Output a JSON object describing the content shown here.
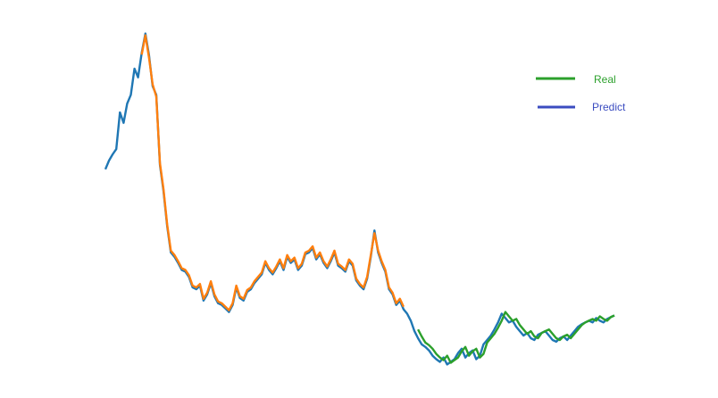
{
  "chart_data": {
    "type": "line",
    "title": "",
    "xlabel": "",
    "ylabel": "",
    "axes_visible": false,
    "grid": false,
    "legend_position": "top-right",
    "xlim": [
      0,
      560
    ],
    "ylim": [
      0,
      420
    ],
    "series": [
      {
        "name": "",
        "color": "#1f77b4",
        "role": "full-history",
        "x": [
          0,
          4,
          8,
          12,
          16,
          20,
          24,
          28,
          32,
          36,
          40,
          44,
          48,
          52,
          56,
          60,
          64,
          68,
          72,
          76,
          80,
          84,
          88,
          92,
          96,
          100,
          104,
          108,
          112,
          116,
          120,
          124,
          128,
          132,
          136,
          140,
          144,
          148,
          152,
          156,
          160,
          164,
          168,
          172,
          176,
          180,
          184,
          188,
          192,
          196,
          200,
          204,
          208,
          212,
          216,
          220,
          224,
          228,
          232,
          236,
          240,
          244,
          248,
          252,
          256,
          260,
          264,
          268,
          272,
          276,
          280,
          284,
          288,
          292,
          296,
          300,
          304,
          308,
          312,
          316,
          320,
          324,
          328,
          332,
          336,
          340,
          344,
          348,
          352,
          356,
          360,
          364,
          368,
          372,
          376,
          380,
          384,
          388,
          392,
          396,
          400,
          404,
          408,
          412,
          416,
          420,
          424,
          428,
          432,
          436,
          440,
          444,
          448,
          452,
          456,
          460,
          464,
          468,
          472,
          476,
          480,
          484,
          488,
          492,
          496,
          500,
          504,
          508,
          512,
          516,
          520,
          524,
          528,
          532,
          536,
          540,
          544,
          548,
          552,
          556,
          560
        ],
        "values": [
          245,
          255,
          262,
          268,
          310,
          298,
          320,
          330,
          360,
          350,
          378,
          400,
          375,
          340,
          330,
          250,
          220,
          180,
          150,
          145,
          138,
          130,
          128,
          122,
          110,
          108,
          112,
          95,
          102,
          115,
          100,
          92,
          90,
          86,
          82,
          90,
          110,
          98,
          95,
          105,
          108,
          115,
          120,
          125,
          138,
          130,
          125,
          132,
          140,
          130,
          145,
          138,
          142,
          130,
          135,
          148,
          150,
          155,
          142,
          148,
          138,
          132,
          140,
          150,
          135,
          132,
          128,
          140,
          135,
          118,
          112,
          108,
          120,
          145,
          175,
          150,
          138,
          128,
          108,
          102,
          90,
          95,
          85,
          80,
          72,
          60,
          52,
          45,
          42,
          38,
          32,
          28,
          25,
          30,
          22,
          25,
          28,
          35,
          40,
          30,
          35,
          38,
          28,
          32,
          45,
          50,
          55,
          62,
          70,
          80,
          75,
          70,
          72,
          65,
          60,
          55,
          58,
          52,
          50,
          56,
          58,
          60,
          55,
          50,
          48,
          52,
          54,
          50,
          55,
          60,
          65,
          68,
          70,
          72,
          70,
          75,
          72,
          70,
          74,
          76,
          78
        ]
      },
      {
        "name": "",
        "color": "#ff7f0e",
        "role": "train-prediction",
        "x": [
          40,
          44,
          48,
          52,
          56,
          60,
          64,
          68,
          72,
          76,
          80,
          84,
          88,
          92,
          96,
          100,
          104,
          108,
          112,
          116,
          120,
          124,
          128,
          132,
          136,
          140,
          144,
          148,
          152,
          156,
          160,
          164,
          168,
          172,
          176,
          180,
          184,
          188,
          192,
          196,
          200,
          204,
          208,
          212,
          216,
          220,
          224,
          228,
          232,
          236,
          240,
          244,
          248,
          252,
          256,
          260,
          264,
          268,
          272,
          276,
          280,
          284,
          288,
          292,
          296,
          300,
          304,
          308,
          312,
          316,
          320,
          324,
          328
        ],
        "values": [
          376,
          398,
          372,
          342,
          328,
          252,
          222,
          182,
          152,
          147,
          140,
          132,
          130,
          124,
          112,
          110,
          114,
          97,
          104,
          117,
          102,
          94,
          92,
          88,
          84,
          92,
          112,
          100,
          97,
          107,
          110,
          117,
          122,
          127,
          140,
          132,
          127,
          134,
          142,
          132,
          147,
          140,
          144,
          132,
          137,
          150,
          152,
          157,
          144,
          150,
          140,
          134,
          142,
          152,
          137,
          134,
          130,
          142,
          137,
          120,
          114,
          110,
          122,
          147,
          172,
          152,
          140,
          130,
          110,
          104,
          92,
          97,
          88
        ]
      },
      {
        "name": "Real",
        "color": "#2ca02c",
        "role": "test-prediction",
        "x": [
          344,
          348,
          352,
          356,
          360,
          364,
          368,
          372,
          376,
          380,
          384,
          388,
          392,
          396,
          400,
          404,
          408,
          412,
          416,
          420,
          424,
          428,
          432,
          436,
          440,
          444,
          448,
          452,
          456,
          460,
          464,
          468,
          472,
          476,
          480,
          484,
          488,
          492,
          496,
          500,
          504,
          508,
          512,
          516,
          520,
          524,
          528,
          532,
          536,
          540,
          544,
          548,
          552,
          556,
          560
        ],
        "values": [
          62,
          54,
          47,
          44,
          40,
          34,
          30,
          27,
          32,
          24,
          27,
          30,
          37,
          42,
          32,
          37,
          40,
          30,
          34,
          47,
          52,
          57,
          64,
          72,
          82,
          77,
          72,
          74,
          67,
          62,
          57,
          60,
          54,
          52,
          58,
          60,
          62,
          57,
          52,
          50,
          54,
          56,
          52,
          57,
          62,
          67,
          70,
          72,
          74,
          72,
          77,
          74,
          72,
          76,
          78
        ]
      }
    ],
    "legend": [
      {
        "label": "Real",
        "color": "#2ca02c",
        "text_color": "#2ca02c"
      },
      {
        "label": "Predict",
        "color": "#3b4cc0",
        "text_color": "#3b4cc0"
      }
    ]
  }
}
